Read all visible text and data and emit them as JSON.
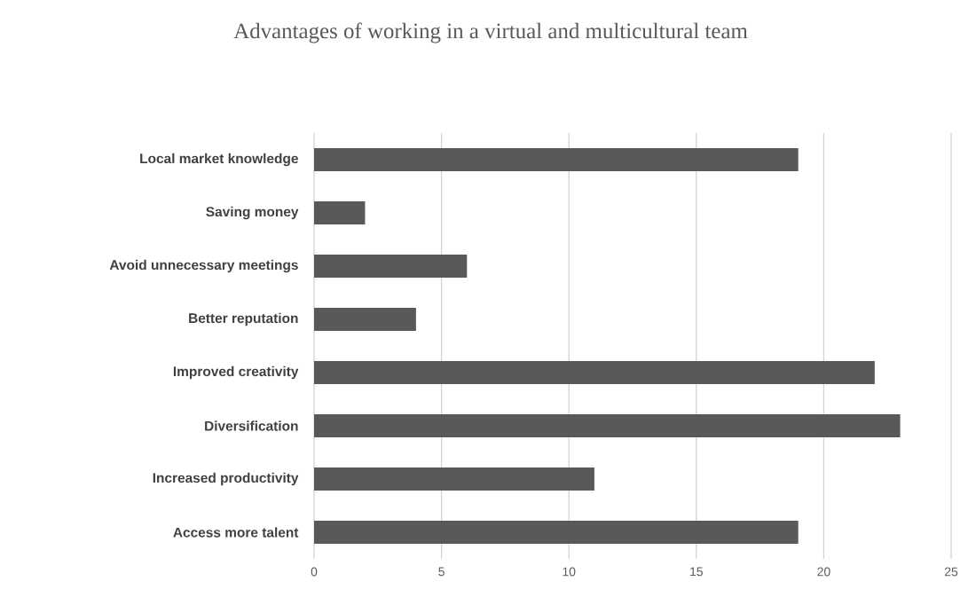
{
  "chart_data": {
    "type": "bar",
    "orientation": "horizontal",
    "title": "Advantages of working in a virtual and multicultural team",
    "categories": [
      "Local market knowledge",
      "Saving money",
      "Avoid unnecessary meetings",
      "Better reputation",
      "Improved creativity",
      "Diversification",
      "Increased productivity",
      "Access more talent"
    ],
    "values": [
      19,
      2,
      6,
      4,
      22,
      23,
      11,
      19
    ],
    "color": "#595959",
    "xlim": [
      0,
      25
    ],
    "xticks": [
      0,
      5,
      10,
      15,
      20,
      25
    ],
    "grid": "x"
  }
}
